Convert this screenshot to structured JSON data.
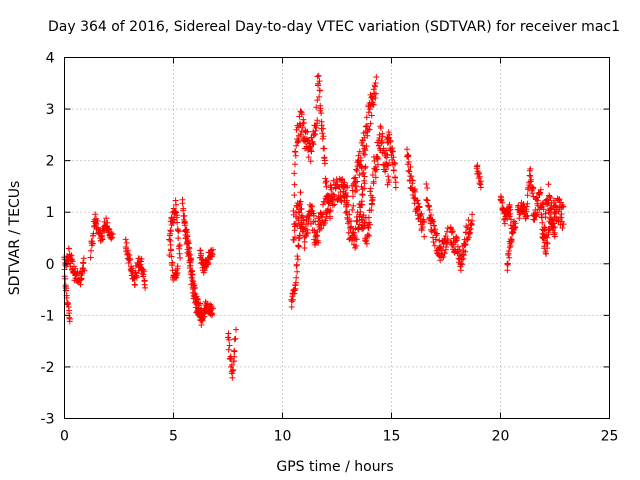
{
  "chart_data": {
    "type": "scatter",
    "title": "Day 364 of 2016, Sidereal Day-to-day VTEC variation (SDTVAR) for receiver mac1",
    "xlabel": "GPS time / hours",
    "ylabel": "SDTVAR / TECUs",
    "xlim": [
      0,
      25
    ],
    "ylim": [
      -3,
      4
    ],
    "xticks": [
      "0",
      "5",
      "10",
      "15",
      "20",
      "25"
    ],
    "yticks": [
      "-3",
      "-2",
      "-1",
      "0",
      "1",
      "2",
      "3",
      "4"
    ],
    "grid": true,
    "marker": "+",
    "series": [
      {
        "name": "SDTVAR",
        "color": "#ff0000",
        "segments": [
          {
            "t0": 0.0,
            "t1": 0.25,
            "ctrl": [
              [
                0.0,
                -0.2
              ],
              [
                0.1,
                -0.6
              ],
              [
                0.2,
                -1.0
              ],
              [
                0.25,
                -1.05
              ]
            ],
            "spread": 0.1
          },
          {
            "t0": 0.0,
            "t1": 0.9,
            "ctrl": [
              [
                0.0,
                0.0
              ],
              [
                0.2,
                0.2
              ],
              [
                0.45,
                -0.2
              ],
              [
                0.7,
                -0.3
              ],
              [
                0.9,
                0.0
              ]
            ],
            "spread": 0.15
          },
          {
            "t0": 1.2,
            "t1": 2.2,
            "ctrl": [
              [
                1.2,
                0.2
              ],
              [
                1.4,
                0.9
              ],
              [
                1.7,
                0.5
              ],
              [
                1.9,
                0.8
              ],
              [
                2.2,
                0.5
              ]
            ],
            "spread": 0.12
          },
          {
            "t0": 2.8,
            "t1": 3.7,
            "ctrl": [
              [
                2.8,
                0.4
              ],
              [
                3.0,
                0.0
              ],
              [
                3.2,
                -0.3
              ],
              [
                3.5,
                0.1
              ],
              [
                3.7,
                -0.4
              ]
            ],
            "spread": 0.15
          },
          {
            "t0": 4.8,
            "t1": 5.3,
            "ctrl": [
              [
                4.8,
                0.3
              ],
              [
                4.9,
                0.8
              ],
              [
                5.1,
                1.1
              ],
              [
                5.2,
                0.6
              ],
              [
                5.3,
                0.2
              ]
            ],
            "spread": 0.15
          },
          {
            "t0": 4.85,
            "t1": 5.2,
            "ctrl": [
              [
                4.85,
                0.4
              ],
              [
                5.0,
                -0.3
              ],
              [
                5.2,
                -0.1
              ]
            ],
            "spread": 0.1
          },
          {
            "t0": 5.4,
            "t1": 6.3,
            "ctrl": [
              [
                5.4,
                1.1
              ],
              [
                5.6,
                0.5
              ],
              [
                5.8,
                -0.3
              ],
              [
                6.0,
                -0.8
              ],
              [
                6.3,
                -0.9
              ]
            ],
            "spread": 0.15
          },
          {
            "t0": 5.5,
            "t1": 6.8,
            "ctrl": [
              [
                5.5,
                0.8
              ],
              [
                5.7,
                0.3
              ],
              [
                6.0,
                -0.6
              ],
              [
                6.3,
                -1.2
              ],
              [
                6.5,
                -0.8
              ],
              [
                6.8,
                -0.9
              ]
            ],
            "spread": 0.12
          },
          {
            "t0": 6.2,
            "t1": 6.8,
            "ctrl": [
              [
                6.2,
                0.2
              ],
              [
                6.4,
                -0.1
              ],
              [
                6.6,
                0.1
              ],
              [
                6.8,
                0.25
              ]
            ],
            "spread": 0.1
          },
          {
            "t0": 7.5,
            "t1": 7.85,
            "ctrl": [
              [
                7.5,
                -1.3
              ],
              [
                7.6,
                -1.8
              ],
              [
                7.7,
                -2.1
              ],
              [
                7.85,
                -1.4
              ]
            ],
            "spread": 0.15
          },
          {
            "t0": 10.4,
            "t1": 10.9,
            "ctrl": [
              [
                10.4,
                -0.8
              ],
              [
                10.6,
                -0.4
              ],
              [
                10.7,
                0.2
              ],
              [
                10.9,
                0.9
              ]
            ],
            "spread": 0.12
          },
          {
            "t0": 10.5,
            "t1": 11.6,
            "ctrl": [
              [
                10.5,
                1.0
              ],
              [
                10.6,
                2.3
              ],
              [
                10.8,
                2.8
              ],
              [
                11.0,
                2.5
              ],
              [
                11.3,
                2.2
              ],
              [
                11.6,
                3.0
              ]
            ],
            "spread": 0.25
          },
          {
            "t0": 10.5,
            "t1": 11.5,
            "ctrl": [
              [
                10.5,
                0.6
              ],
              [
                10.8,
                1.2
              ],
              [
                11.0,
                0.5
              ],
              [
                11.3,
                1.0
              ],
              [
                11.5,
                0.6
              ]
            ],
            "spread": 0.25
          },
          {
            "t0": 11.6,
            "t1": 12.2,
            "ctrl": [
              [
                11.6,
                3.7
              ],
              [
                11.7,
                3.3
              ],
              [
                11.9,
                2.2
              ],
              [
                12.0,
                1.5
              ],
              [
                12.2,
                1.0
              ]
            ],
            "spread": 0.2
          },
          {
            "t0": 11.5,
            "t1": 13.0,
            "ctrl": [
              [
                11.5,
                0.4
              ],
              [
                11.8,
                0.9
              ],
              [
                12.2,
                1.3
              ],
              [
                12.6,
                1.5
              ],
              [
                13.0,
                1.3
              ]
            ],
            "spread": 0.25
          },
          {
            "t0": 12.8,
            "t1": 13.8,
            "ctrl": [
              [
                12.8,
                1.6
              ],
              [
                13.0,
                0.8
              ],
              [
                13.3,
                0.4
              ],
              [
                13.6,
                1.2
              ],
              [
                13.8,
                1.8
              ]
            ],
            "spread": 0.25
          },
          {
            "t0": 13.2,
            "t1": 14.3,
            "ctrl": [
              [
                13.2,
                1.3
              ],
              [
                13.5,
                1.8
              ],
              [
                13.8,
                2.4
              ],
              [
                14.0,
                2.9
              ],
              [
                14.3,
                3.6
              ]
            ],
            "spread": 0.3
          },
          {
            "t0": 13.6,
            "t1": 14.9,
            "ctrl": [
              [
                13.6,
                1.0
              ],
              [
                13.9,
                0.6
              ],
              [
                14.2,
                1.8
              ],
              [
                14.5,
                2.4
              ],
              [
                14.9,
                1.7
              ]
            ],
            "spread": 0.3
          },
          {
            "t0": 14.8,
            "t1": 15.2,
            "ctrl": [
              [
                14.8,
                2.6
              ],
              [
                15.0,
                2.2
              ],
              [
                15.2,
                1.6
              ]
            ],
            "spread": 0.2
          },
          {
            "t0": 15.7,
            "t1": 16.5,
            "ctrl": [
              [
                15.7,
                2.1
              ],
              [
                15.9,
                1.6
              ],
              [
                16.1,
                1.2
              ],
              [
                16.3,
                0.9
              ],
              [
                16.5,
                0.6
              ]
            ],
            "spread": 0.2
          },
          {
            "t0": 16.6,
            "t1": 17.6,
            "ctrl": [
              [
                16.6,
                1.4
              ],
              [
                16.8,
                0.8
              ],
              [
                17.0,
                0.5
              ],
              [
                17.3,
                0.2
              ],
              [
                17.6,
                0.6
              ]
            ],
            "spread": 0.2
          },
          {
            "t0": 17.7,
            "t1": 18.7,
            "ctrl": [
              [
                17.7,
                0.6
              ],
              [
                18.0,
                0.3
              ],
              [
                18.2,
                0.0
              ],
              [
                18.4,
                0.5
              ],
              [
                18.7,
                0.9
              ]
            ],
            "spread": 0.2
          },
          {
            "t0": 18.9,
            "t1": 19.1,
            "ctrl": [
              [
                18.9,
                1.9
              ],
              [
                19.0,
                1.7
              ],
              [
                19.1,
                1.5
              ]
            ],
            "spread": 0.1
          },
          {
            "t0": 20.0,
            "t1": 20.5,
            "ctrl": [
              [
                20.0,
                1.2
              ],
              [
                20.2,
                0.9
              ],
              [
                20.4,
                1.1
              ],
              [
                20.5,
                0.8
              ]
            ],
            "spread": 0.15
          },
          {
            "t0": 20.3,
            "t1": 20.7,
            "ctrl": [
              [
                20.3,
                -0.05
              ],
              [
                20.45,
                0.4
              ],
              [
                20.6,
                0.7
              ],
              [
                20.7,
                0.8
              ]
            ],
            "spread": 0.1
          },
          {
            "t0": 20.8,
            "t1": 21.5,
            "ctrl": [
              [
                20.8,
                1.0
              ],
              [
                21.0,
                1.1
              ],
              [
                21.2,
                0.9
              ],
              [
                21.35,
                1.8
              ],
              [
                21.5,
                1.3
              ]
            ],
            "spread": 0.15
          },
          {
            "t0": 21.5,
            "t1": 22.5,
            "ctrl": [
              [
                21.5,
                0.9
              ],
              [
                21.8,
                1.3
              ],
              [
                22.0,
                0.8
              ],
              [
                22.2,
                1.3
              ],
              [
                22.5,
                0.6
              ]
            ],
            "spread": 0.25
          },
          {
            "t0": 21.9,
            "t1": 22.9,
            "ctrl": [
              [
                21.9,
                0.7
              ],
              [
                22.1,
                0.4
              ],
              [
                22.3,
                0.9
              ],
              [
                22.6,
                1.1
              ],
              [
                22.9,
                0.9
              ]
            ],
            "spread": 0.25
          }
        ]
      }
    ]
  }
}
